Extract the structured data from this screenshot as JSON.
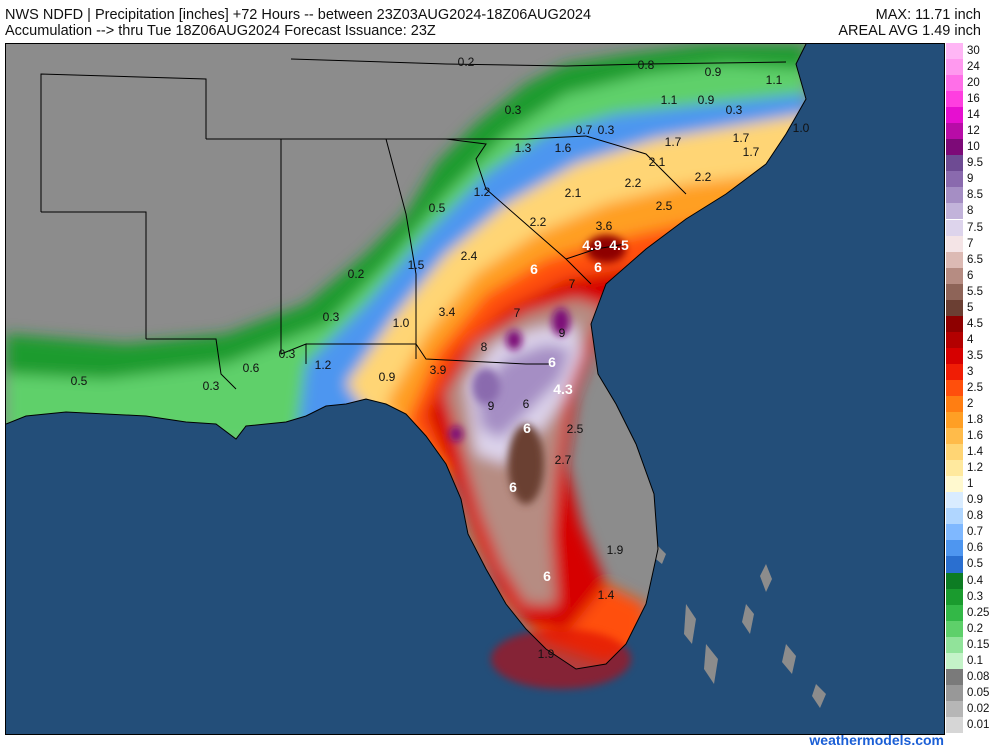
{
  "header": {
    "line1_left": "NWS NDFD | Precipitation [inches] +72 Hours -- between 23Z03AUG2024-18Z06AUG2024",
    "line2_left": "Accumulation --> thru Tue 18Z06AUG2024  Forecast Issuance: 23Z",
    "line1_right": "MAX: 11.71 inch",
    "line2_right": "AREAL AVG 1.49 inch"
  },
  "credit": "weathermodels.com",
  "colors": {
    "ocean": "#234e79",
    "land_nodata": "#8c8c8c",
    "border": "#000000"
  },
  "legend": [
    {
      "label": "30",
      "color": "#ffb6f5"
    },
    {
      "label": "24",
      "color": "#ff99ef"
    },
    {
      "label": "20",
      "color": "#ff6fe8"
    },
    {
      "label": "16",
      "color": "#ff3ee0"
    },
    {
      "label": "14",
      "color": "#e60fd0"
    },
    {
      "label": "12",
      "color": "#b80ca7"
    },
    {
      "label": "10",
      "color": "#7d0a78"
    },
    {
      "label": "9.5",
      "color": "#6e4b93"
    },
    {
      "label": "9",
      "color": "#8a6aae"
    },
    {
      "label": "8.5",
      "color": "#a58ec4"
    },
    {
      "label": "8",
      "color": "#c2b3da"
    },
    {
      "label": "7.5",
      "color": "#ddd4ec"
    },
    {
      "label": "7",
      "color": "#f4e4e6"
    },
    {
      "label": "6.5",
      "color": "#dcbab4"
    },
    {
      "label": "6",
      "color": "#b68c82"
    },
    {
      "label": "5.5",
      "color": "#8e6458"
    },
    {
      "label": "5",
      "color": "#6b3f33"
    },
    {
      "label": "4.5",
      "color": "#8e0000"
    },
    {
      "label": "4",
      "color": "#b30000"
    },
    {
      "label": "3.5",
      "color": "#d60000"
    },
    {
      "label": "3",
      "color": "#f01d05"
    },
    {
      "label": "2.5",
      "color": "#ff4f0c"
    },
    {
      "label": "2",
      "color": "#ff7e12"
    },
    {
      "label": "1.8",
      "color": "#ff9f24"
    },
    {
      "label": "1.6",
      "color": "#ffbb4a"
    },
    {
      "label": "1.4",
      "color": "#ffd574"
    },
    {
      "label": "1.2",
      "color": "#ffe99e"
    },
    {
      "label": "1",
      "color": "#fff9cf"
    },
    {
      "label": "0.9",
      "color": "#d9ecff"
    },
    {
      "label": "0.8",
      "color": "#b0d6ff"
    },
    {
      "label": "0.7",
      "color": "#7fb8ff"
    },
    {
      "label": "0.6",
      "color": "#4e96f0"
    },
    {
      "label": "0.5",
      "color": "#2a6fd0"
    },
    {
      "label": "0.4",
      "color": "#0d7c23"
    },
    {
      "label": "0.3",
      "color": "#1a9b2e"
    },
    {
      "label": "0.25",
      "color": "#33b847"
    },
    {
      "label": "0.2",
      "color": "#5ed06a"
    },
    {
      "label": "0.15",
      "color": "#91e39a"
    },
    {
      "label": "0.1",
      "color": "#c4f3c8"
    },
    {
      "label": "0.08",
      "color": "#7a7a7a"
    },
    {
      "label": "0.05",
      "color": "#989898"
    },
    {
      "label": "0.02",
      "color": "#b6b6b6"
    },
    {
      "label": "0.01",
      "color": "#d6d6d6"
    }
  ],
  "map_labels": [
    {
      "text": "0.2",
      "color": "#111"
    },
    {
      "text": "0.8",
      "color": "#111"
    },
    {
      "text": "0.9",
      "color": "#111"
    },
    {
      "text": "1.1",
      "color": "#111"
    },
    {
      "text": "0.3",
      "color": "#111"
    },
    {
      "text": "0.3",
      "color": "#111"
    },
    {
      "text": "1.6",
      "color": "#111"
    },
    {
      "text": "1.1",
      "color": "#111"
    },
    {
      "text": "0.9",
      "color": "#111"
    },
    {
      "text": "0.3",
      "color": "#111"
    },
    {
      "text": "0.7",
      "color": "#111"
    },
    {
      "text": "1.0",
      "color": "#111"
    },
    {
      "text": "1.7",
      "color": "#111"
    },
    {
      "text": "1.3",
      "color": "#111"
    },
    {
      "text": "1.7",
      "color": "#111"
    },
    {
      "text": "2.1",
      "color": "#111"
    },
    {
      "text": "1.7",
      "color": "#111"
    },
    {
      "text": "1.2",
      "color": "#111"
    },
    {
      "text": "2.2",
      "color": "#111"
    },
    {
      "text": "2.1",
      "color": "#111"
    },
    {
      "text": "2.2",
      "color": "#111"
    },
    {
      "text": "0.5",
      "color": "#111"
    },
    {
      "text": "2.5",
      "color": "#111"
    },
    {
      "text": "2.2",
      "color": "#111"
    },
    {
      "text": "3.6",
      "color": "#111"
    },
    {
      "text": "4.9",
      "color": "#fff"
    },
    {
      "text": "4.5",
      "color": "#fff"
    },
    {
      "text": "2.4",
      "color": "#111"
    },
    {
      "text": "0.2",
      "color": "#111"
    },
    {
      "text": "1.5",
      "color": "#111"
    },
    {
      "text": "6",
      "color": "#fff"
    },
    {
      "text": "6",
      "color": "#fff"
    },
    {
      "text": "7",
      "color": "#111"
    },
    {
      "text": "0.3",
      "color": "#111"
    },
    {
      "text": "3.4",
      "color": "#111"
    },
    {
      "text": "7",
      "color": "#111"
    },
    {
      "text": "1.0",
      "color": "#111"
    },
    {
      "text": "9",
      "color": "#111"
    },
    {
      "text": "8",
      "color": "#111"
    },
    {
      "text": "0.3",
      "color": "#111"
    },
    {
      "text": "6",
      "color": "#fff"
    },
    {
      "text": "1.2",
      "color": "#111"
    },
    {
      "text": "0.6",
      "color": "#111"
    },
    {
      "text": "3.9",
      "color": "#111"
    },
    {
      "text": "0.9",
      "color": "#111"
    },
    {
      "text": "0.5",
      "color": "#111"
    },
    {
      "text": "0.3",
      "color": "#111"
    },
    {
      "text": "4.3",
      "color": "#fff"
    },
    {
      "text": "9",
      "color": "#111"
    },
    {
      "text": "6",
      "color": "#111"
    },
    {
      "text": "2.5",
      "color": "#111"
    },
    {
      "text": "6",
      "color": "#fff"
    },
    {
      "text": "2.7",
      "color": "#111"
    },
    {
      "text": "6",
      "color": "#fff"
    },
    {
      "text": "1.9",
      "color": "#111"
    },
    {
      "text": "6",
      "color": "#fff"
    },
    {
      "text": "1.4",
      "color": "#111"
    },
    {
      "text": "1.9",
      "color": "#111"
    }
  ]
}
